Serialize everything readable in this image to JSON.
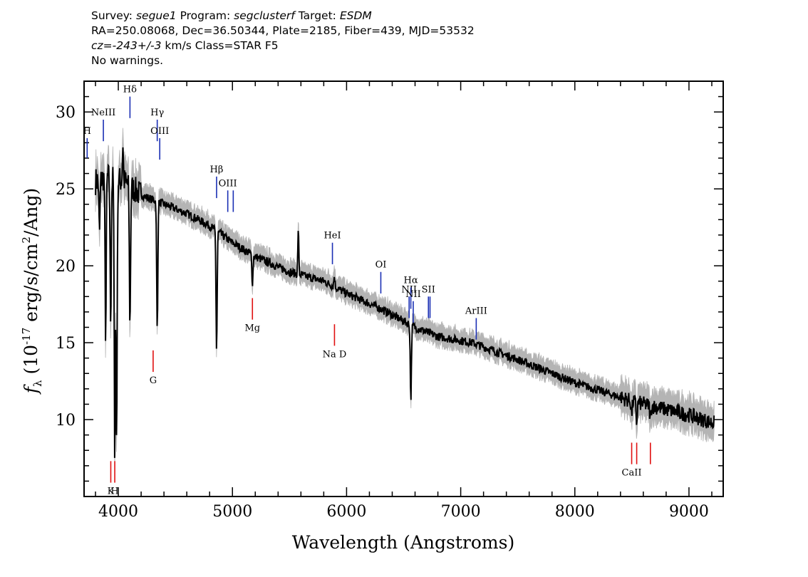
{
  "header": {
    "survey_label": "Survey:",
    "survey": "segue1",
    "program_label": "Program:",
    "program": "segclusterf",
    "target_label": "Target:",
    "target": "ESDM",
    "line2": "RA=250.08068, Dec=36.50344, Plate=2185, Fiber=439, MJD=53532",
    "cz_label": "cz=",
    "cz_value": "-243+/-3",
    "cz_rest": " km/s Class=STAR F5",
    "line4": "No warnings."
  },
  "colors": {
    "spectrum": "#000000",
    "error_band": "#b4b4b4",
    "emission_lines": "#1a2fb4",
    "absorption_lines": "#e01010"
  },
  "chart_data": {
    "type": "line",
    "xlabel": "Wavelength (Angstroms)",
    "ylabel_parts": [
      "f",
      "λ",
      " (10",
      "-17",
      " erg/s/cm",
      "2",
      "/Ang)"
    ],
    "xlim": [
      3700,
      9300
    ],
    "ylim": [
      5,
      32
    ],
    "x_ticks": [
      4000,
      5000,
      6000,
      7000,
      8000,
      9000
    ],
    "y_ticks": [
      10,
      15,
      20,
      25,
      30
    ],
    "continuum_anchors": [
      [
        3800,
        25.5
      ],
      [
        3900,
        25.8
      ],
      [
        4050,
        25.5
      ],
      [
        4200,
        24.6
      ],
      [
        4400,
        24.0
      ],
      [
        4600,
        23.4
      ],
      [
        4800,
        22.6
      ],
      [
        5000,
        21.5
      ],
      [
        5200,
        20.6
      ],
      [
        5500,
        19.6
      ],
      [
        5800,
        19.0
      ],
      [
        6000,
        18.2
      ],
      [
        6300,
        17.2
      ],
      [
        6600,
        16.0
      ],
      [
        6800,
        15.4
      ],
      [
        7100,
        15.0
      ],
      [
        7500,
        13.9
      ],
      [
        8000,
        12.4
      ],
      [
        8500,
        11.2
      ],
      [
        9000,
        10.3
      ],
      [
        9200,
        9.8
      ]
    ],
    "absorption_features": [
      [
        3835,
        22.2
      ],
      [
        3889,
        15.6
      ],
      [
        3933,
        16.5
      ],
      [
        3969,
        8.0
      ],
      [
        3985,
        9.0
      ],
      [
        4102,
        16.2
      ],
      [
        4341,
        15.8
      ],
      [
        4861,
        14.5
      ],
      [
        5175,
        18.9
      ],
      [
        5893,
        19.3
      ],
      [
        6563,
        11.4
      ],
      [
        8498,
        10.4
      ],
      [
        8542,
        9.8
      ],
      [
        8662,
        10.0
      ]
    ],
    "emission_features": [
      [
        4040,
        28.0
      ],
      [
        5577,
        22.5
      ]
    ],
    "emission_lines": [
      {
        "label": "H",
        "wavelength": 3727,
        "y_top": 28.3,
        "y_bottom": 27.0
      },
      {
        "label": "NeIII",
        "wavelength": 3869,
        "y_top": 29.5,
        "y_bottom": 28.1
      },
      {
        "label": "Hδ",
        "wavelength": 4102,
        "y_top": 31.0,
        "y_bottom": 29.6
      },
      {
        "label": "Hγ",
        "wavelength": 4341,
        "y_top": 29.5,
        "y_bottom": 28.1
      },
      {
        "label": "OIII",
        "wavelength": 4363,
        "y_top": 28.3,
        "y_bottom": 26.9
      },
      {
        "label": "Hβ",
        "wavelength": 4861,
        "y_top": 25.8,
        "y_bottom": 24.4
      },
      {
        "label": "OIII",
        "wavelength": 4959,
        "y_top": 24.9,
        "y_bottom": 23.5
      },
      {
        "label": "",
        "wavelength": 5007,
        "y_top": 24.9,
        "y_bottom": 23.5
      },
      {
        "label": "HeI",
        "wavelength": 5876,
        "y_top": 21.5,
        "y_bottom": 20.1
      },
      {
        "label": "OI",
        "wavelength": 6300,
        "y_top": 19.6,
        "y_bottom": 18.2
      },
      {
        "label": "NII",
        "wavelength": 6548,
        "y_top": 18.0,
        "y_bottom": 16.6
      },
      {
        "label": "Hα",
        "wavelength": 6563,
        "y_top": 18.6,
        "y_bottom": 17.2
      },
      {
        "label": "NII",
        "wavelength": 6584,
        "y_top": 17.7,
        "y_bottom": 16.3
      },
      {
        "label": "SII",
        "wavelength": 6717,
        "y_top": 18.0,
        "y_bottom": 16.6
      },
      {
        "label": "",
        "wavelength": 6731,
        "y_top": 18.0,
        "y_bottom": 16.6
      },
      {
        "label": "ArIII",
        "wavelength": 7136,
        "y_top": 16.6,
        "y_bottom": 15.2
      }
    ],
    "absorption_lines": [
      {
        "label": "K",
        "wavelength": 3934,
        "y_top": 7.3,
        "y_bottom": 5.9
      },
      {
        "label": "H",
        "wavelength": 3969,
        "y_top": 7.3,
        "y_bottom": 5.9
      },
      {
        "label": "G",
        "wavelength": 4305,
        "y_top": 14.5,
        "y_bottom": 13.1
      },
      {
        "label": "Mg",
        "wavelength": 5175,
        "y_top": 17.9,
        "y_bottom": 16.5
      },
      {
        "label": "Na D",
        "wavelength": 5894,
        "y_top": 16.2,
        "y_bottom": 14.8
      },
      {
        "label": "CaII",
        "wavelength": 8498,
        "y_top": 8.5,
        "y_bottom": 7.1
      },
      {
        "label": "",
        "wavelength": 8542,
        "y_top": 8.5,
        "y_bottom": 7.1
      },
      {
        "label": "",
        "wavelength": 8662,
        "y_top": 8.5,
        "y_bottom": 7.1
      }
    ]
  }
}
